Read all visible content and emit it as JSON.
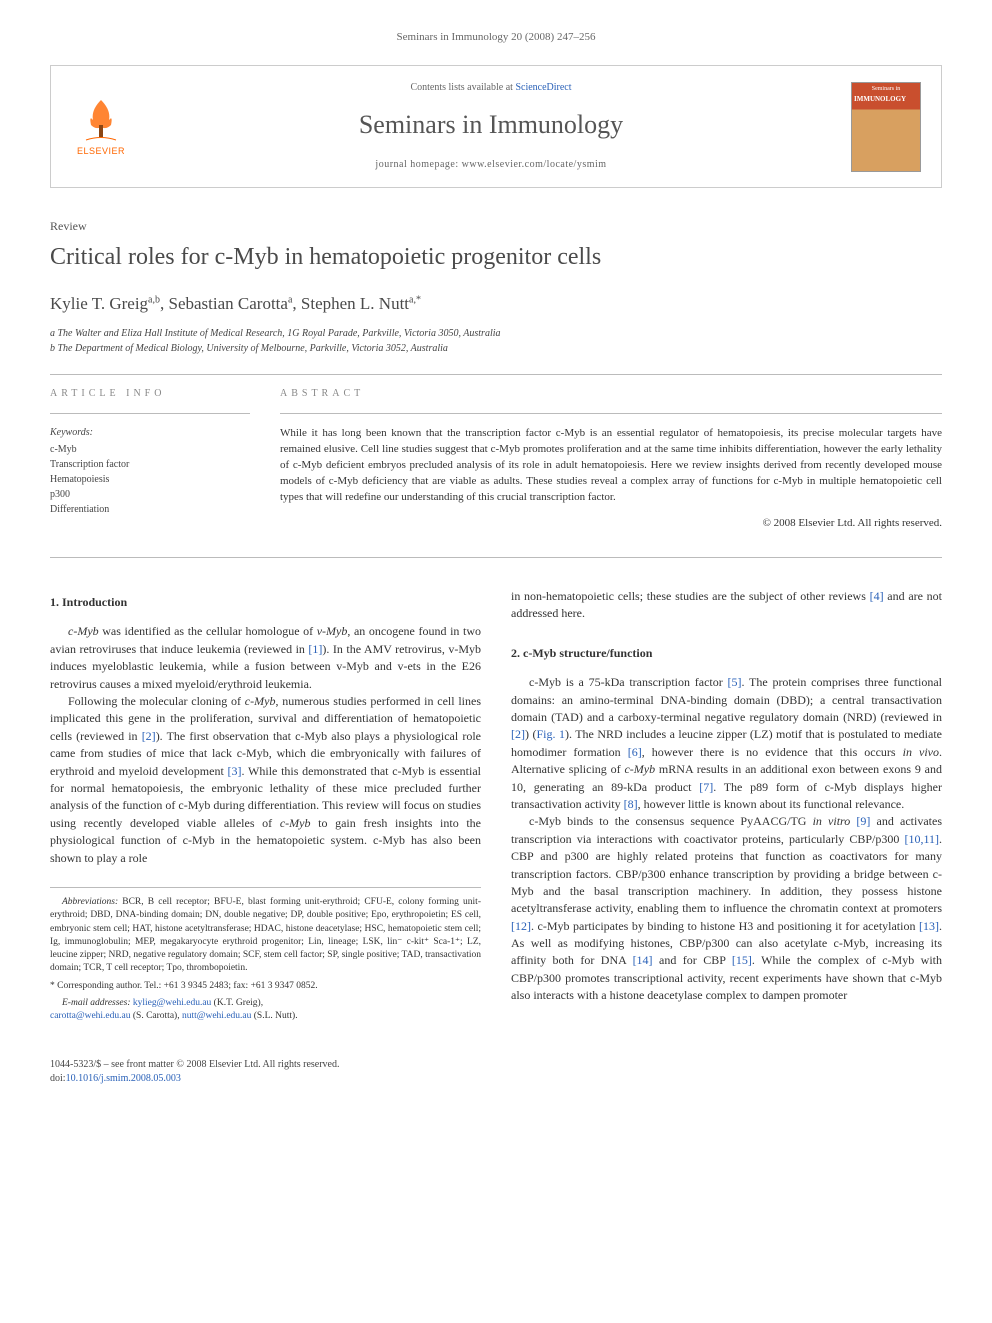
{
  "header": {
    "citation": "Seminars in Immunology 20 (2008) 247–256"
  },
  "masthead": {
    "logo_text": "ELSEVIER",
    "contents_prefix": "Contents lists available at ",
    "contents_link": "ScienceDirect",
    "journal_title": "Seminars in Immunology",
    "homepage_prefix": "journal homepage: ",
    "homepage_url": "www.elsevier.com/locate/ysmim",
    "cover_label": "Seminars in",
    "cover_title": "IMMUNOLOGY"
  },
  "article": {
    "type": "Review",
    "title": "Critical roles for c-Myb in hematopoietic progenitor cells",
    "authors_html": "Kylie T. Greig<sup>a,b</sup>, Sebastian Carotta<sup>a</sup>, Stephen L. Nutt<sup>a,*</sup>",
    "affiliations": [
      "a The Walter and Eliza Hall Institute of Medical Research, 1G Royal Parade, Parkville, Victoria 3050, Australia",
      "b The Department of Medical Biology, University of Melbourne, Parkville, Victoria 3052, Australia"
    ]
  },
  "info": {
    "heading": "ARTICLE INFO",
    "keywords_label": "Keywords:",
    "keywords": [
      "c-Myb",
      "Transcription factor",
      "Hematopoiesis",
      "p300",
      "Differentiation"
    ]
  },
  "abstract": {
    "heading": "ABSTRACT",
    "text": "While it has long been known that the transcription factor c-Myb is an essential regulator of hematopoiesis, its precise molecular targets have remained elusive. Cell line studies suggest that c-Myb promotes proliferation and at the same time inhibits differentiation, however the early lethality of c-Myb deficient embryos precluded analysis of its role in adult hematopoiesis. Here we review insights derived from recently developed mouse models of c-Myb deficiency that are viable as adults. These studies reveal a complex array of functions for c-Myb in multiple hematopoietic cell types that will redefine our understanding of this crucial transcription factor.",
    "copyright": "© 2008 Elsevier Ltd. All rights reserved."
  },
  "sections": {
    "intro_heading": "1.  Introduction",
    "struct_heading": "2.  c-Myb structure/function"
  },
  "body": {
    "left_p1_a": "c-Myb",
    "left_p1_b": " was identified as the cellular homologue of ",
    "left_p1_c": "v-Myb",
    "left_p1_d": ", an oncogene found in two avian retroviruses that induce leukemia (reviewed in ",
    "left_p1_ref1": "[1]",
    "left_p1_e": "). In the AMV retrovirus, v-Myb induces myeloblastic leukemia, while a fusion between v-Myb and v-ets in the E26 retrovirus causes a mixed myeloid/erythroid leukemia.",
    "left_p2_a": "Following the molecular cloning of ",
    "left_p2_b": "c-Myb",
    "left_p2_c": ", numerous studies performed in cell lines implicated this gene in the proliferation, survival and differentiation of hematopoietic cells (reviewed in ",
    "left_p2_ref2": "[2]",
    "left_p2_d": "). The first observation that c-Myb also plays a physiological role came from studies of mice that lack c-Myb, which die embryonically with failures of erythroid and myeloid development ",
    "left_p2_ref3": "[3]",
    "left_p2_e": ". While this demonstrated that c-Myb is essential for normal hematopoiesis, the embryonic lethality of these mice precluded further analysis of the function of c-Myb during differentiation. This review will focus on studies using recently developed viable alleles of ",
    "left_p2_f": "c-Myb",
    "left_p2_g": " to gain fresh insights into the physiological function of c-Myb in the hematopoietic system. c-Myb has also been shown to play a role",
    "right_p0": "in non-hematopoietic cells; these studies are the subject of other reviews ",
    "right_p0_ref4": "[4]",
    "right_p0_b": " and are not addressed here.",
    "right_p1_a": "c-Myb is a 75-kDa transcription factor ",
    "right_p1_ref5": "[5]",
    "right_p1_b": ". The protein comprises three functional domains: an amino-terminal DNA-binding domain (DBD); a central transactivation domain (TAD) and a carboxy-terminal negative regulatory domain (NRD) (reviewed in ",
    "right_p1_ref2": "[2]",
    "right_p1_c": ") (",
    "right_p1_fig1": "Fig. 1",
    "right_p1_d": "). The NRD includes a leucine zipper (LZ) motif that is postulated to mediate homodimer formation ",
    "right_p1_ref6": "[6]",
    "right_p1_e": ", however there is no evidence that this occurs ",
    "right_p1_f": "in vivo",
    "right_p1_g": ". Alternative splicing of ",
    "right_p1_h": "c-Myb",
    "right_p1_i": " mRNA results in an additional exon between exons 9 and 10, generating an 89-kDa product ",
    "right_p1_ref7": "[7]",
    "right_p1_j": ". The p89 form of c-Myb displays higher transactivation activity ",
    "right_p1_ref8": "[8]",
    "right_p1_k": ", however little is known about its functional relevance.",
    "right_p2_a": "c-Myb binds to the consensus sequence PyAACG/TG ",
    "right_p2_b": "in vitro",
    "right_p2_c": " ",
    "right_p2_ref9": "[9]",
    "right_p2_d": " and activates transcription via interactions with coactivator proteins, particularly CBP/p300 ",
    "right_p2_ref1011": "[10,11]",
    "right_p2_e": ". CBP and p300 are highly related proteins that function as coactivators for many transcription factors. CBP/p300 enhance transcription by providing a bridge between c-Myb and the basal transcription machinery. In addition, they possess histone acetyltransferase activity, enabling them to influence the chromatin context at promoters ",
    "right_p2_ref12": "[12]",
    "right_p2_f": ". c-Myb participates by binding to histone H3 and positioning it for acetylation ",
    "right_p2_ref13": "[13]",
    "right_p2_g": ". As well as modifying histones, CBP/p300 can also acetylate c-Myb, increasing its affinity both for DNA ",
    "right_p2_ref14": "[14]",
    "right_p2_h": " and for CBP ",
    "right_p2_ref15": "[15]",
    "right_p2_i": ". While the complex of c-Myb with CBP/p300 promotes transcriptional activity, recent experiments have shown that c-Myb also interacts with a histone deacetylase complex to dampen promoter"
  },
  "footnotes": {
    "abbrev_label": "Abbreviations:",
    "abbrev_text": " BCR, B cell receptor; BFU-E, blast forming unit-erythroid; CFU-E, colony forming unit-erythroid; DBD, DNA-binding domain; DN, double negative; DP, double positive; Epo, erythropoietin; ES cell, embryonic stem cell; HAT, histone acetyltransferase; HDAC, histone deacetylase; HSC, hematopoietic stem cell; Ig, immunoglobulin; MEP, megakaryocyte erythroid progenitor; Lin, lineage; LSK, lin⁻ c-kit⁺ Sca-1⁺; LZ, leucine zipper; NRD, negative regulatory domain; SCF, stem cell factor; SP, single positive; TAD, transactivation domain; TCR, T cell receptor; Tpo, thrombopoietin.",
    "corr_label": "* Corresponding author. Tel.: +61 3 9345 2483; fax: +61 3 9347 0852.",
    "email_label": "E-mail addresses:",
    "email1": "kylieg@wehi.edu.au",
    "email1_name": " (K.T. Greig),",
    "email2": "carotta@wehi.edu.au",
    "email2_name": " (S. Carotta), ",
    "email3": "nutt@wehi.edu.au",
    "email3_name": " (S.L. Nutt)."
  },
  "footer": {
    "line1": "1044-5323/$ – see front matter © 2008 Elsevier Ltd. All rights reserved.",
    "doi_prefix": "doi:",
    "doi": "10.1016/j.smim.2008.05.003"
  },
  "colors": {
    "link": "#2a61b8",
    "text": "#333333",
    "muted": "#666666",
    "elsevier_orange": "#ff6600"
  }
}
